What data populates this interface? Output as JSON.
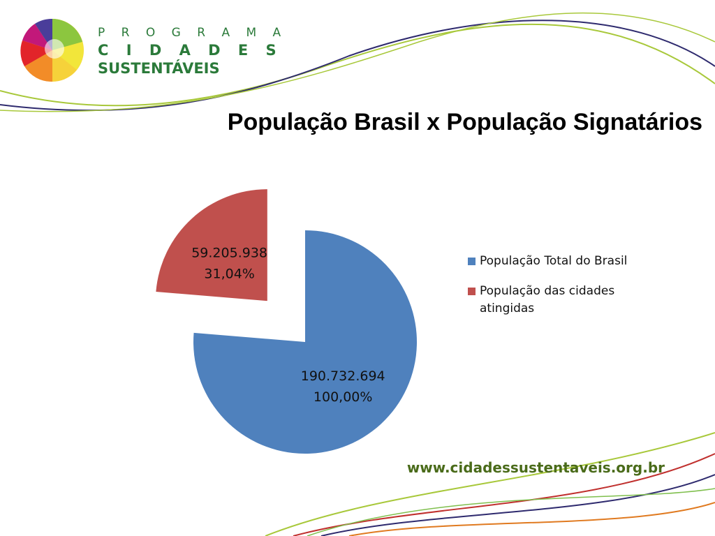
{
  "logo": {
    "line1": "P R O G R A M A",
    "line2": "C I D A D E S",
    "line3": "SUSTENTÁVEIS"
  },
  "footer_url": "www.cidadessustentaveis.org.br",
  "chart_data": {
    "type": "pie",
    "title": "População Brasil x População Signatários",
    "categories": [
      "População Total do Brasil",
      "População das cidades atingidas"
    ],
    "values": [
      190732694,
      59205938
    ],
    "value_labels": [
      "190.732.694",
      "59.205.938"
    ],
    "percent_labels": [
      "100,00%",
      "31,04%"
    ],
    "colors": [
      "#4f81bd",
      "#c0504d"
    ],
    "exploded": [
      false,
      true
    ],
    "legend": "right"
  }
}
